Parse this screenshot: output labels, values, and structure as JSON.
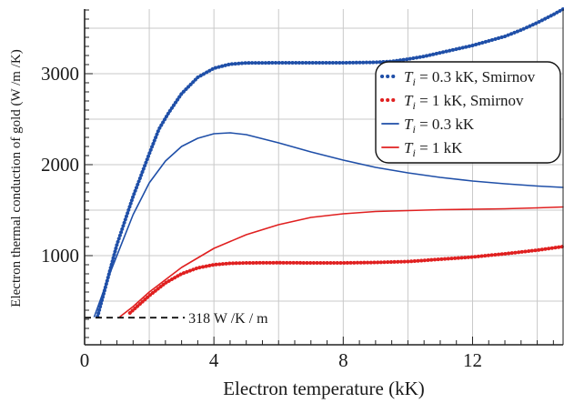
{
  "chart_data": {
    "type": "line",
    "xlabel": "Electron temperature (kK)",
    "ylabel": "Electron thermal conduction of gold (W /m /K)",
    "xlim": [
      0,
      14.8
    ],
    "ylim": [
      20,
      3710
    ],
    "x_ticks": [
      0,
      4,
      8,
      12
    ],
    "y_ticks": [
      1000,
      2000,
      3000
    ],
    "grid": true,
    "legend_position": "upper-right",
    "series": [
      {
        "name": "T_i = 0.3 kK, Smirnov",
        "legend_label": {
          "var": "T",
          "sub": "i",
          "rest": " = 0.3 kK, Smirnov"
        },
        "color": "#1f4fa8",
        "style": "dotted",
        "x": [
          0.4,
          1.0,
          1.5,
          2.0,
          2.3,
          2.6,
          3.0,
          3.5,
          4.0,
          4.5,
          5.0,
          6.0,
          7.0,
          8.0,
          9.0,
          9.5,
          10.0,
          10.5,
          11.0,
          11.5,
          12.0,
          12.5,
          13.0,
          13.5,
          14.0,
          14.5,
          14.8
        ],
        "y": [
          330,
          1120,
          1650,
          2120,
          2390,
          2570,
          2780,
          2960,
          3060,
          3105,
          3118,
          3120,
          3120,
          3120,
          3125,
          3135,
          3160,
          3190,
          3230,
          3270,
          3310,
          3360,
          3410,
          3480,
          3560,
          3650,
          3710
        ]
      },
      {
        "name": "T_i = 1 kK, Smirnov",
        "legend_label": {
          "var": "T",
          "sub": "i",
          "rest": " = 1 kK, Smirnov"
        },
        "color": "#e02020",
        "style": "dotted",
        "x": [
          1.4,
          2.0,
          2.5,
          3.0,
          3.5,
          4.0,
          4.5,
          5.0,
          6.0,
          7.0,
          8.0,
          9.0,
          10.0,
          11.0,
          12.0,
          13.0,
          14.0,
          14.8
        ],
        "y": [
          370,
          560,
          700,
          800,
          865,
          900,
          915,
          920,
          922,
          920,
          920,
          925,
          935,
          960,
          985,
          1020,
          1060,
          1100
        ]
      },
      {
        "name": "T_i = 0.3 kK",
        "legend_label": {
          "var": "T",
          "sub": "i",
          "rest": " = 0.3 kK"
        },
        "color": "#1f4fa8",
        "style": "solid",
        "x": [
          0.3,
          0.8,
          1.5,
          2.0,
          2.5,
          3.0,
          3.5,
          4.0,
          4.5,
          5.0,
          6.0,
          7.0,
          8.0,
          9.0,
          10.0,
          11.0,
          12.0,
          13.0,
          14.0,
          14.8
        ],
        "y": [
          330,
          820,
          1450,
          1800,
          2040,
          2200,
          2290,
          2340,
          2350,
          2330,
          2240,
          2140,
          2050,
          1970,
          1910,
          1860,
          1820,
          1790,
          1765,
          1750
        ]
      },
      {
        "name": "T_i = 1 kK",
        "legend_label": {
          "var": "T",
          "sub": "i",
          "rest": " = 1 kK"
        },
        "color": "#e02020",
        "style": "solid",
        "x": [
          1.1,
          1.5,
          2.0,
          3.0,
          4.0,
          5.0,
          6.0,
          7.0,
          8.0,
          9.0,
          10.0,
          11.0,
          12.0,
          13.0,
          14.0,
          14.8
        ],
        "y": [
          330,
          440,
          600,
          870,
          1080,
          1230,
          1340,
          1420,
          1460,
          1485,
          1495,
          1505,
          1510,
          1515,
          1525,
          1535
        ]
      }
    ],
    "annotations": [
      {
        "label": "318 W /K / m",
        "y": 318,
        "x_from": 0,
        "x_to": 3.1,
        "style": "dashed",
        "color": "#111111"
      }
    ]
  }
}
